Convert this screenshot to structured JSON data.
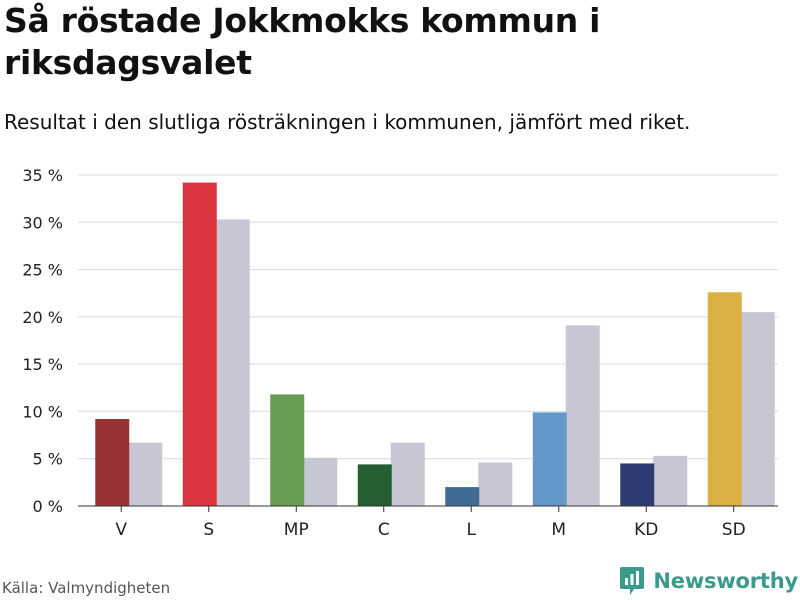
{
  "header": {
    "title": "Så röstade Jokkmokks kommun i riksdagsvalet",
    "subtitle": "Resultat i den slutliga rösträkningen i kommunen, jämfört med riket."
  },
  "footer": {
    "source": "Källa: Valmyndigheten",
    "brand": "Newsworthy",
    "brand_icon": "newsworthy-logo-icon",
    "brand_color": "#3a9a8c"
  },
  "chart_data": {
    "type": "bar",
    "title": "Så röstade Jokkmokks kommun i riksdagsvalet",
    "subtitle": "Resultat i den slutliga rösträkningen i kommunen, jämfört med riket.",
    "categories": [
      "V",
      "S",
      "MP",
      "C",
      "L",
      "M",
      "KD",
      "SD"
    ],
    "series": [
      {
        "name": "Jokkmokk",
        "values": [
          9.2,
          34.2,
          11.8,
          4.4,
          2.0,
          9.9,
          4.5,
          22.6
        ],
        "colors": [
          "#993333",
          "#db3640",
          "#659e53",
          "#255e33",
          "#3f6b94",
          "#6399c8",
          "#2e3b72",
          "#dcb144"
        ]
      },
      {
        "name": "Riket",
        "values": [
          6.7,
          30.3,
          5.1,
          6.7,
          4.6,
          19.1,
          5.3,
          20.5
        ],
        "color": "#c7c7d3"
      }
    ],
    "yticks": [
      "0 %",
      "5 %",
      "10 %",
      "15 %",
      "20 %",
      "25 %",
      "30 %",
      "35 %"
    ],
    "ylim": [
      0,
      35
    ],
    "xlabel": "",
    "ylabel": "",
    "grid": true,
    "grid_color": "#d9d9d9",
    "axis_color": "#333333"
  }
}
